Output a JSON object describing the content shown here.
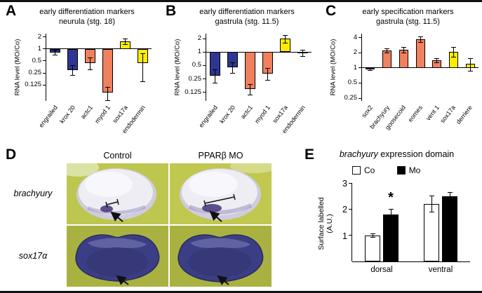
{
  "colors": {
    "navy": "#2e3691",
    "salmon": "#f0805e",
    "yellow": "#ffec00",
    "stain_dark": "#3b3e85",
    "stain_purple": "#4a3d7e",
    "photo_bg_top": "#bdc64e",
    "photo_bg_bottom": "#a9b240"
  },
  "panels": {
    "A": "A",
    "B": "B",
    "C": "C",
    "D": "D",
    "E": "E"
  },
  "panelD": {
    "col_headers": [
      "Control",
      "PPARβ MO"
    ],
    "row_labels": [
      "brachyury",
      "sox17α"
    ]
  },
  "chart_data": [
    {
      "id": "A",
      "type": "bar",
      "scale": "log2",
      "title_line1": "early differentiation markers",
      "title_line2": "neurula (stg. 18)",
      "ylabel": "RNA level (MO/Co)",
      "ylim": [
        0.05,
        2.4
      ],
      "yticks": [
        2,
        1,
        0.5,
        0.25,
        0.125
      ],
      "baseline": 1,
      "categories": [
        "engrailed",
        "krox 20",
        "actc1",
        "myod 1",
        "sox17a",
        "endodermin"
      ],
      "values": [
        0.82,
        0.3,
        0.45,
        0.08,
        1.55,
        0.45
      ],
      "errors": [
        0.12,
        0.08,
        0.15,
        0.03,
        0.25,
        0.3
      ],
      "colors": [
        "#2e3691",
        "#2e3691",
        "#f0805e",
        "#f0805e",
        "#ffec00",
        "#ffec00"
      ]
    },
    {
      "id": "B",
      "type": "bar",
      "scale": "log2",
      "title_line1": "early differentiation markers",
      "title_line2": "gastrula (stg. 11.5)",
      "ylabel": "RNA level (MO/Co)",
      "ylim": [
        0.08,
        2.6
      ],
      "yticks": [
        2,
        1,
        0.5,
        0.25,
        0.125
      ],
      "baseline": 1,
      "categories": [
        "engrailed",
        "krox 20",
        "actc1",
        "myod 1",
        "sox17a",
        "endodermin"
      ],
      "values": [
        0.3,
        0.45,
        0.15,
        0.33,
        2.0,
        0.95
      ],
      "errors": [
        0.1,
        0.12,
        0.04,
        0.1,
        0.4,
        0.15
      ],
      "colors": [
        "#2e3691",
        "#2e3691",
        "#f0805e",
        "#f0805e",
        "#ffec00",
        "#ffec00"
      ]
    },
    {
      "id": "C",
      "type": "bar",
      "scale": "log2",
      "title_line1": "early specification markers",
      "title_line2": "gastrula (stg. 11.5)",
      "ylabel": "RNA level (MO/Co)",
      "ylim": [
        0.22,
        4.8
      ],
      "yticks": [
        4,
        2,
        1,
        0.5,
        0.25
      ],
      "baseline": 1,
      "categories": [
        "sox2",
        "brachyury",
        "goosecoid",
        "eomes",
        "vent 1",
        "sox17a",
        "derriere"
      ],
      "values": [
        0.95,
        2.2,
        2.3,
        3.7,
        1.4,
        2.1,
        1.2
      ],
      "errors": [
        0.05,
        0.2,
        0.3,
        0.5,
        0.15,
        0.45,
        0.35
      ],
      "colors": [
        "#2e3691",
        "#f0805e",
        "#f0805e",
        "#f0805e",
        "#f0805e",
        "#ffec00",
        "#ffec00"
      ]
    },
    {
      "id": "E",
      "type": "grouped-bar",
      "scale": "linear",
      "title_italic": "brachyury",
      "title_rest": " expression domain",
      "ylabel_line1": "Surface labelled",
      "ylabel_line2": "(A.U.)",
      "ylim": [
        0,
        3
      ],
      "yticks": [
        1,
        2,
        3
      ],
      "baseline": 0,
      "categories": [
        "dorsal",
        "ventral"
      ],
      "series": [
        {
          "name": "Co",
          "fill": "#ffffff",
          "values": [
            1.0,
            2.2
          ],
          "errors": [
            0.07,
            0.3
          ]
        },
        {
          "name": "Mo",
          "fill": "#000000",
          "values": [
            1.8,
            2.5
          ],
          "errors": [
            0.2,
            0.15
          ]
        }
      ],
      "annotations": [
        {
          "text": "*",
          "category": 0,
          "series": 1
        }
      ]
    }
  ]
}
